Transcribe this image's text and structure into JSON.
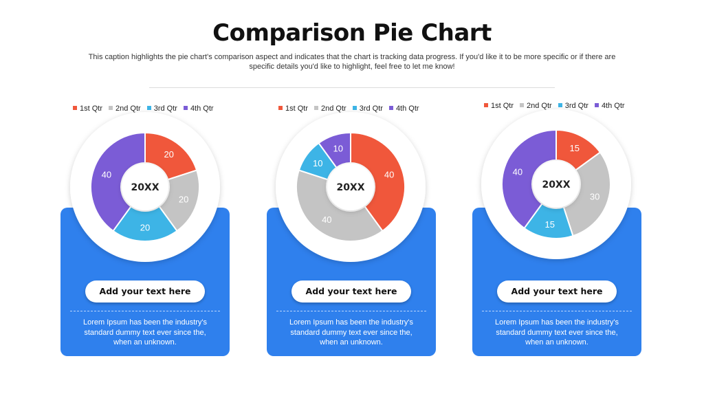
{
  "title": "Comparison Pie Chart",
  "caption": "This caption highlights the pie chart's comparison aspect and indicates that the chart is tracking data progress. If you'd like it to be more specific or if there are specific details you'd like to highlight, feel free to let me know!",
  "colors": {
    "q1": "#f0573b",
    "q2": "#c4c4c4",
    "q3": "#3db4e6",
    "q4": "#7b5cd6",
    "card": "#2f80ed"
  },
  "legend": [
    "1st Qtr",
    "2nd Qtr",
    "3rd Qtr",
    "4th Qtr"
  ],
  "cards": [
    {
      "button_label": "Add your text here",
      "text": "Lorem Ipsum has been the industry's standard dummy text ever since the, when an unknown."
    },
    {
      "button_label": "Add your text here",
      "text": "Lorem Ipsum has been the industry's standard dummy text ever since the, when an unknown."
    },
    {
      "button_label": "Add your text here",
      "text": "Lorem Ipsum has been the industry's standard dummy text ever since the, when an unknown."
    }
  ],
  "chart_data": [
    {
      "type": "pie",
      "center_label": "20XX",
      "categories": [
        "1st Qtr",
        "2nd Qtr",
        "3rd Qtr",
        "4th Qtr"
      ],
      "values": [
        20,
        20,
        20,
        40
      ]
    },
    {
      "type": "pie",
      "center_label": "20XX",
      "categories": [
        "1st Qtr",
        "2nd Qtr",
        "3rd Qtr",
        "4th Qtr"
      ],
      "values": [
        40,
        40,
        10,
        10
      ]
    },
    {
      "type": "pie",
      "center_label": "20XX",
      "categories": [
        "1st Qtr",
        "2nd Qtr",
        "3rd Qtr",
        "4th Qtr"
      ],
      "values": [
        15,
        30,
        15,
        40
      ]
    }
  ]
}
